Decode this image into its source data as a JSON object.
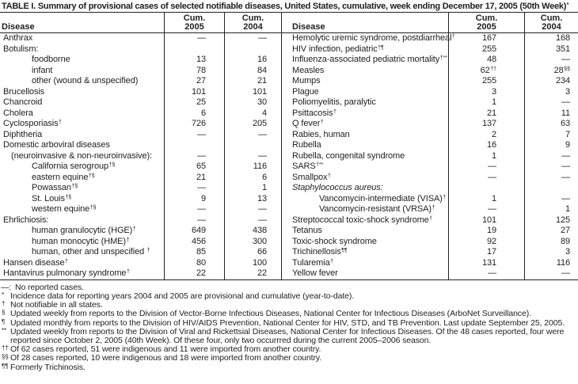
{
  "title": "TABLE I. Summary of provisional cases of selected notifiable diseases, United States, cumulative, week ending December 17, 2005 (50th Week)",
  "title_sup": "*",
  "header": {
    "disease": "Disease",
    "cum": "Cum.",
    "y2005": "2005",
    "y2004": "2004"
  },
  "rows_left": [
    {
      "label": "Anthrax",
      "sup": "",
      "ind": 0,
      "v05": "—",
      "v04": "—"
    },
    {
      "label": "Botulism:",
      "sup": "",
      "ind": 0,
      "v05": "",
      "v04": ""
    },
    {
      "label": "foodborne",
      "sup": "",
      "ind": 2,
      "v05": "13",
      "v04": "16"
    },
    {
      "label": "infant",
      "sup": "",
      "ind": 2,
      "v05": "78",
      "v04": "84"
    },
    {
      "label": "other (wound & unspecified)",
      "sup": "",
      "ind": 2,
      "v05": "27",
      "v04": "21"
    },
    {
      "label": "Brucellosis",
      "sup": "",
      "ind": 0,
      "v05": "101",
      "v04": "101"
    },
    {
      "label": "Chancroid",
      "sup": "",
      "ind": 0,
      "v05": "25",
      "v04": "30"
    },
    {
      "label": "Cholera",
      "sup": "",
      "ind": 0,
      "v05": "6",
      "v04": "4"
    },
    {
      "label": "Cyclosporiasis",
      "sup": "†",
      "ind": 0,
      "v05": "726",
      "v04": "205"
    },
    {
      "label": "Diphtheria",
      "sup": "",
      "ind": 0,
      "v05": "—",
      "v04": "—"
    },
    {
      "label": "Domestic arboviral diseases",
      "sup": "",
      "ind": 0,
      "v05": "",
      "v04": ""
    },
    {
      "label": "(neuroinvasive & non-neuroinvasive):",
      "sup": "",
      "ind": 1,
      "v05": "—",
      "v04": "—"
    },
    {
      "label": "California serogroup",
      "sup": "†§",
      "ind": 2,
      "v05": "65",
      "v04": "116"
    },
    {
      "label": "eastern equine",
      "sup": "†§",
      "ind": 2,
      "v05": "21",
      "v04": "6"
    },
    {
      "label": "Powassan",
      "sup": "†§",
      "ind": 2,
      "v05": "—",
      "v04": "1"
    },
    {
      "label": "St. Louis",
      "sup": "†§",
      "ind": 2,
      "v05": "9",
      "v04": "13"
    },
    {
      "label": "western equine",
      "sup": "†§",
      "ind": 2,
      "v05": "—",
      "v04": "—"
    },
    {
      "label": "Ehrlichiosis:",
      "sup": "",
      "ind": 0,
      "v05": "—",
      "v04": "—"
    },
    {
      "label": "human granulocytic (HGE)",
      "sup": "†",
      "ind": 2,
      "v05": "649",
      "v04": "438"
    },
    {
      "label": "human monocytic (HME)",
      "sup": "†",
      "ind": 2,
      "v05": "456",
      "v04": "300"
    },
    {
      "label": "human, other and unspecified ",
      "sup": "†",
      "ind": 2,
      "v05": "85",
      "v04": "66"
    },
    {
      "label": "Hansen disease",
      "sup": "†",
      "ind": 0,
      "v05": "80",
      "v04": "100"
    },
    {
      "label": "Hantavirus pulmonary syndrome",
      "sup": "†",
      "ind": 0,
      "v05": "22",
      "v04": "22"
    }
  ],
  "rows_right": [
    {
      "label": "Hemolytic uremic syndrome, postdiarrheal",
      "sup": "†",
      "ind": 0,
      "v05": "167",
      "v04": "168"
    },
    {
      "label": "HIV infection, pediatric",
      "sup": "†¶",
      "ind": 0,
      "v05": "255",
      "v04": "351"
    },
    {
      "label": "Influenza-associated pediatric mortality",
      "sup": "†**",
      "ind": 0,
      "v05": "48",
      "v04": "—"
    },
    {
      "label": "Measles",
      "sup": "",
      "ind": 0,
      "v05": "62",
      "v05sup": "††",
      "v04": "28",
      "v04sup": "§§"
    },
    {
      "label": "Mumps",
      "sup": "",
      "ind": 0,
      "v05": "255",
      "v04": "234"
    },
    {
      "label": "Plague",
      "sup": "",
      "ind": 0,
      "v05": "3",
      "v04": "3"
    },
    {
      "label": "Poliomyelitis, paralytic",
      "sup": "",
      "ind": 0,
      "v05": "1",
      "v04": "—"
    },
    {
      "label": "Psittacosis",
      "sup": "†",
      "ind": 0,
      "v05": "21",
      "v04": "11"
    },
    {
      "label": "Q fever",
      "sup": "†",
      "ind": 0,
      "v05": "137",
      "v04": "63"
    },
    {
      "label": "Rabies, human",
      "sup": "",
      "ind": 0,
      "v05": "2",
      "v04": "7"
    },
    {
      "label": "Rubella",
      "sup": "",
      "ind": 0,
      "v05": "16",
      "v04": "9"
    },
    {
      "label": "Rubella, congenital syndrome",
      "sup": "",
      "ind": 0,
      "v05": "1",
      "v04": "—"
    },
    {
      "label": "SARS",
      "sup": "†**",
      "ind": 0,
      "v05": "—",
      "v04": "—"
    },
    {
      "label": "Smallpox",
      "sup": "†",
      "ind": 0,
      "v05": "—",
      "v04": "—"
    },
    {
      "label": "Staphylococcus aureus:",
      "sup": "",
      "ind": 0,
      "italic": true,
      "v05": "",
      "v04": ""
    },
    {
      "label": "Vancomycin-intermediate (VISA)",
      "sup": "†",
      "ind": 2,
      "v05": "1",
      "v04": "—"
    },
    {
      "label": "Vancomycin-resistant (VRSA)",
      "sup": "†",
      "ind": 2,
      "v05": "—",
      "v04": "1"
    },
    {
      "label": "Streptococcal toxic-shock syndrome",
      "sup": "†",
      "ind": 0,
      "v05": "101",
      "v04": "125"
    },
    {
      "label": "Tetanus",
      "sup": "",
      "ind": 0,
      "v05": "19",
      "v04": "27"
    },
    {
      "label": "Toxic-shock syndrome",
      "sup": "",
      "ind": 0,
      "v05": "92",
      "v04": "89"
    },
    {
      "label": "Trichinellosis",
      "sup": "¶¶",
      "ind": 0,
      "v05": "17",
      "v04": "3"
    },
    {
      "label": "Tularemia",
      "sup": "†",
      "ind": 0,
      "v05": "131",
      "v04": "116"
    },
    {
      "label": "Yellow fever",
      "sup": "",
      "ind": 0,
      "v05": "—",
      "v04": "—"
    }
  ],
  "footnotes": [
    {
      "marker": "—:",
      "sup": false,
      "text": "No reported cases."
    },
    {
      "marker": "*",
      "sup": true,
      "text": "Incidence data for reporting years 2004 and 2005 are provisional and cumulative (year-to-date)."
    },
    {
      "marker": "†",
      "sup": true,
      "text": "Not notifiable in all states."
    },
    {
      "marker": "§",
      "sup": true,
      "text": "Updated weekly from reports to the Division of Vector-Borne Infectious Diseases, National Center for Infectious Diseases (ArboNet Surveillance)."
    },
    {
      "marker": "¶",
      "sup": true,
      "text": "Updated monthly from reports to the Division of HIV/AIDS Prevention, National Center for HIV, STD, and TB Prevention. Last update September 25, 2005."
    },
    {
      "marker": "**",
      "sup": true,
      "text": "Updated weekly from reports to the Division of Viral and Rickettsial Diseases, National Center for Infectious Diseases. Of the 48 cases reported, four were reported since October 2, 2005 (40th Week). Of these four, only two occurrred during the current 2005–2006 season."
    },
    {
      "marker": "††",
      "sup": true,
      "text": "Of 62 cases reported, 51 were indigenous and 11 were imported from another country."
    },
    {
      "marker": "§§",
      "sup": true,
      "text": "Of 28 cases reported, 10 were indigenous and 18 were imported from another country."
    },
    {
      "marker": "¶¶",
      "sup": true,
      "text": "Formerly Trichinosis."
    }
  ]
}
